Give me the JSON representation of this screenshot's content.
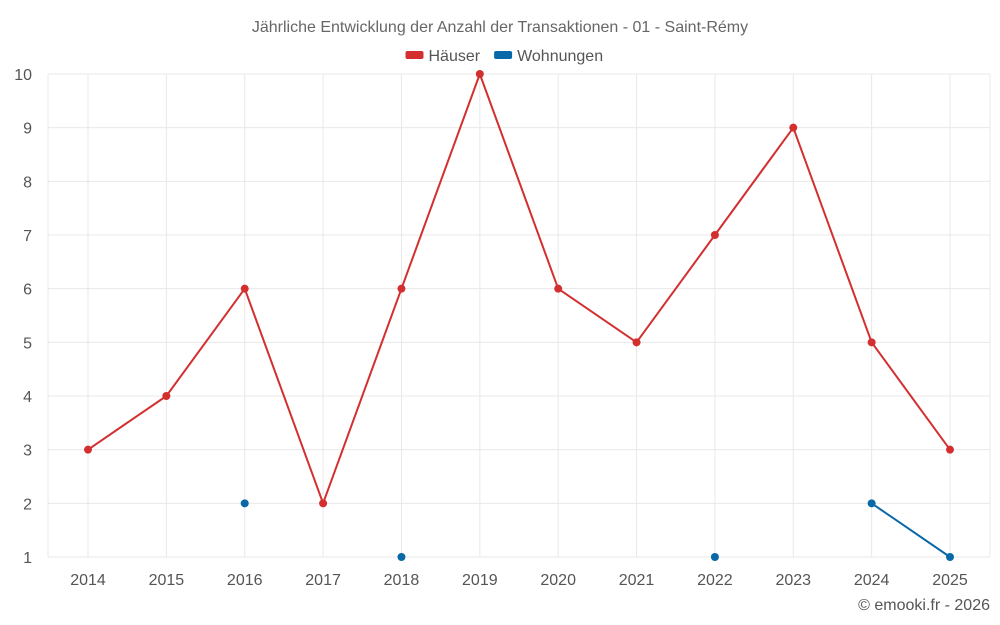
{
  "chart_data": {
    "type": "line",
    "title": "Jährliche Entwicklung der Anzahl der Transaktionen - 01 - Saint-Rémy",
    "categories": [
      "2014",
      "2015",
      "2016",
      "2017",
      "2018",
      "2019",
      "2020",
      "2021",
      "2022",
      "2023",
      "2024",
      "2025"
    ],
    "series": [
      {
        "name": "Häuser",
        "color": "#d32f2f",
        "values": [
          3,
          4,
          6,
          2,
          6,
          10,
          6,
          5,
          7,
          9,
          5,
          3
        ]
      },
      {
        "name": "Wohnungen",
        "color": "#0868a8",
        "values": [
          null,
          null,
          2,
          null,
          1,
          null,
          null,
          null,
          1,
          null,
          2,
          1
        ]
      }
    ],
    "ylim": [
      1,
      10
    ],
    "yticks": [
      1,
      2,
      3,
      4,
      5,
      6,
      7,
      8,
      9,
      10
    ],
    "grid": true,
    "legend_position": "top-center"
  },
  "credit": "© emooki.fr - 2026"
}
